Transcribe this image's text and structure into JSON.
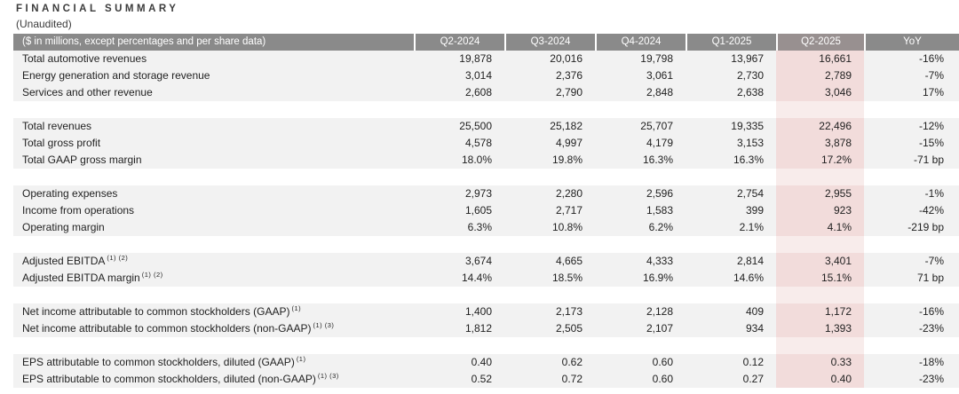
{
  "page": {
    "title": "FINANCIAL SUMMARY",
    "subtitle": "(Unaudited)"
  },
  "colors": {
    "header_bg": "#8a8a8a",
    "header_highlight_bg": "#989090",
    "row_bg": "#f2f2f2",
    "highlight_cell_bg": "#f2dcdb",
    "highlight_gap_bg": "#f8eceb",
    "header_text": "#ffffff",
    "body_text": "#1f1f1f"
  },
  "table": {
    "header": {
      "label": "($ in millions, except percentages and per share data)",
      "columns": [
        "Q2-2024",
        "Q3-2024",
        "Q4-2024",
        "Q1-2025",
        "Q2-2025",
        "YoY"
      ],
      "highlighted_column": "Q2-2025"
    },
    "rows": [
      {
        "type": "data",
        "label": "Total automotive revenues",
        "sup": "",
        "values": [
          "19,878",
          "20,016",
          "19,798",
          "13,967",
          "16,661"
        ],
        "yoy": "-16%"
      },
      {
        "type": "data",
        "label": "Energy generation and storage revenue",
        "sup": "",
        "values": [
          "3,014",
          "2,376",
          "3,061",
          "2,730",
          "2,789"
        ],
        "yoy": "-7%"
      },
      {
        "type": "data",
        "label": "Services and other revenue",
        "sup": "",
        "values": [
          "2,608",
          "2,790",
          "2,848",
          "2,638",
          "3,046"
        ],
        "yoy": "17%"
      },
      {
        "type": "gap"
      },
      {
        "type": "data",
        "label": "Total revenues",
        "sup": "",
        "values": [
          "25,500",
          "25,182",
          "25,707",
          "19,335",
          "22,496"
        ],
        "yoy": "-12%"
      },
      {
        "type": "data",
        "label": "Total gross profit",
        "sup": "",
        "values": [
          "4,578",
          "4,997",
          "4,179",
          "3,153",
          "3,878"
        ],
        "yoy": "-15%"
      },
      {
        "type": "data",
        "label": "Total GAAP gross margin",
        "sup": "",
        "values": [
          "18.0%",
          "19.8%",
          "16.3%",
          "16.3%",
          "17.2%"
        ],
        "yoy": "-71 bp"
      },
      {
        "type": "gap"
      },
      {
        "type": "data",
        "label": "Operating expenses",
        "sup": "",
        "values": [
          "2,973",
          "2,280",
          "2,596",
          "2,754",
          "2,955"
        ],
        "yoy": "-1%"
      },
      {
        "type": "data",
        "label": "Income from operations",
        "sup": "",
        "values": [
          "1,605",
          "2,717",
          "1,583",
          "399",
          "923"
        ],
        "yoy": "-42%"
      },
      {
        "type": "data",
        "label": "Operating margin",
        "sup": "",
        "values": [
          "6.3%",
          "10.8%",
          "6.2%",
          "2.1%",
          "4.1%"
        ],
        "yoy": "-219 bp"
      },
      {
        "type": "gap"
      },
      {
        "type": "data",
        "label": "Adjusted EBITDA",
        "sup": "(1) (2)",
        "values": [
          "3,674",
          "4,665",
          "4,333",
          "2,814",
          "3,401"
        ],
        "yoy": "-7%"
      },
      {
        "type": "data",
        "label": "Adjusted EBITDA margin",
        "sup": "(1) (2)",
        "values": [
          "14.4%",
          "18.5%",
          "16.9%",
          "14.6%",
          "15.1%"
        ],
        "yoy": "71 bp"
      },
      {
        "type": "gap"
      },
      {
        "type": "data",
        "label": "Net income attributable to common stockholders (GAAP)",
        "sup": "(1)",
        "values": [
          "1,400",
          "2,173",
          "2,128",
          "409",
          "1,172"
        ],
        "yoy": "-16%"
      },
      {
        "type": "data",
        "label": "Net income attributable to common stockholders (non-GAAP)",
        "sup": "(1) (3)",
        "values": [
          "1,812",
          "2,505",
          "2,107",
          "934",
          "1,393"
        ],
        "yoy": "-23%"
      },
      {
        "type": "gap"
      },
      {
        "type": "data",
        "label": "EPS attributable to common stockholders, diluted (GAAP)",
        "sup": "(1)",
        "values": [
          "0.40",
          "0.62",
          "0.60",
          "0.12",
          "0.33"
        ],
        "yoy": "-18%"
      },
      {
        "type": "data",
        "label": "EPS attributable to common stockholders, diluted (non-GAAP)",
        "sup": "(1) (3)",
        "values": [
          "0.52",
          "0.72",
          "0.60",
          "0.27",
          "0.40"
        ],
        "yoy": "-23%"
      }
    ]
  }
}
